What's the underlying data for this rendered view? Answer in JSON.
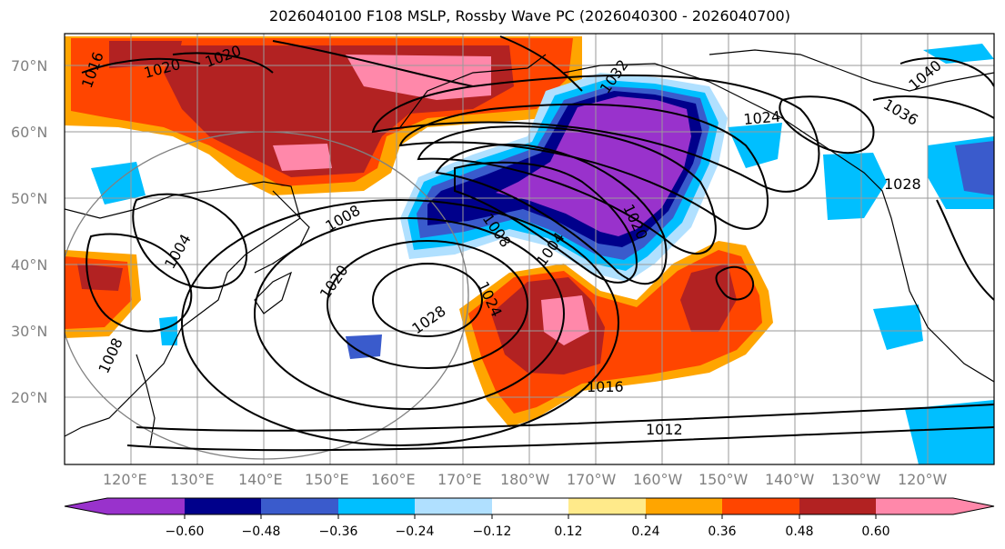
{
  "title": "2026040100 F108 MSLP, Rossby Wave PC (2026040300 - 2026040700)",
  "lat_labels": [
    "70°N",
    "60°N",
    "50°N",
    "40°N",
    "30°N",
    "20°N"
  ],
  "lon_labels": [
    "120°E",
    "130°E",
    "140°E",
    "150°E",
    "160°E",
    "170°E",
    "180°W",
    "170°W",
    "160°W",
    "150°W",
    "140°W",
    "130°W",
    "120°W"
  ],
  "colorbar": {
    "ticks": [
      "−0.60",
      "−0.48",
      "−0.36",
      "−0.24",
      "−0.12",
      "0.12",
      "0.24",
      "0.36",
      "0.48",
      "0.60"
    ],
    "colors": [
      "#9932cc",
      "#00008b",
      "#3a5bcc",
      "#00bfff",
      "#b0e0ff",
      "#ffffff",
      "#ffea8a",
      "#ffa500",
      "#ff4500",
      "#b22222",
      "#ff88aa"
    ]
  },
  "contour_labels": [
    "1016",
    "1020",
    "1020",
    "1032",
    "1040",
    "1036",
    "1024",
    "1028",
    "1008",
    "1020",
    "1008",
    "1004",
    "1020",
    "1028",
    "1024",
    "1004",
    "1008",
    "1016",
    "1012"
  ],
  "colors": {
    "purple": "#9932cc",
    "navy": "#00008b",
    "royal_blue": "#3a5bcc",
    "sky_blue": "#00bfff",
    "light_blue": "#b0e0ff",
    "yellow": "#ffea8a",
    "orange": "#ffa500",
    "red_orange": "#ff4500",
    "dark_red": "#b22222",
    "pink": "#ff88aa"
  }
}
